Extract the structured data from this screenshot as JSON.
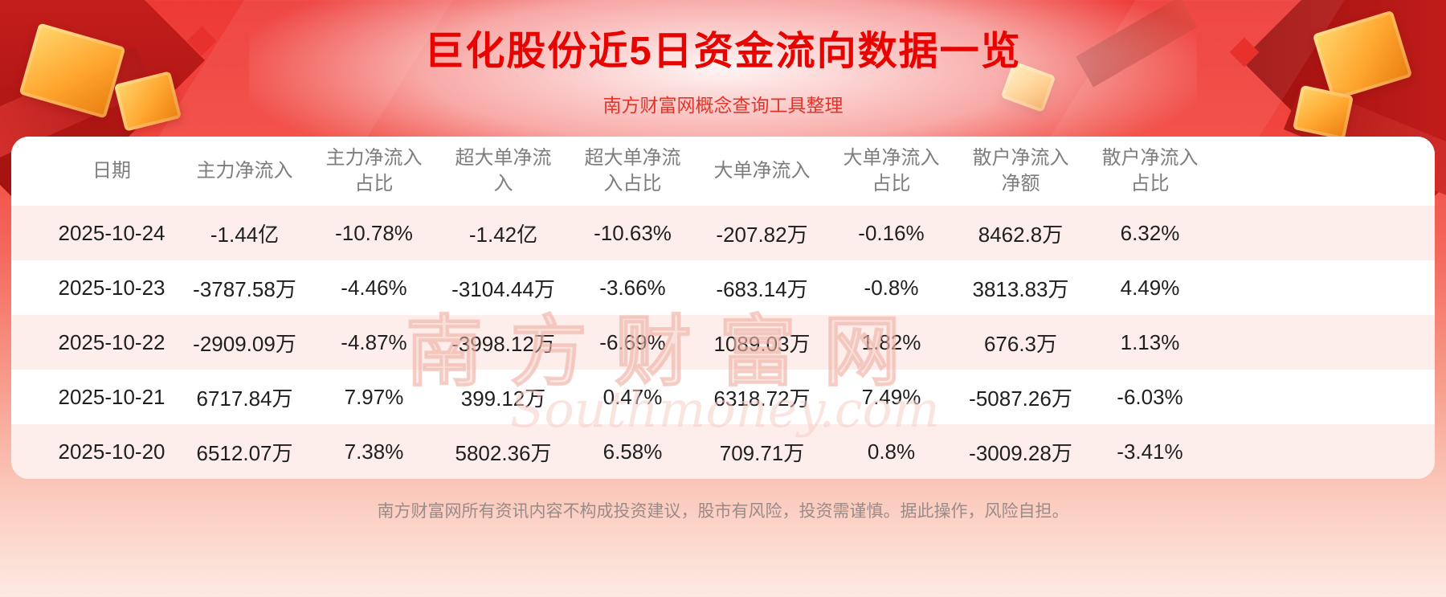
{
  "page": {
    "title": "巨化股份近5日资金流向数据一览",
    "subtitle": "南方财富网概念查询工具整理",
    "footer": "南方财富网所有资讯内容不构成投资建议，股市有风险，投资需谨慎。据此操作，风险自担。",
    "watermark_cn": "南方财富网",
    "watermark_en": "Southmoney.com"
  },
  "colors": {
    "title_red": "#e60300",
    "banner_red": "#ee3a36",
    "stripe_pink": "#fdeeec",
    "header_gray": "#7d7d7d",
    "gold": "#ffa62f"
  },
  "chart_data": {
    "type": "table",
    "title": "巨化股份近5日资金流向数据一览",
    "columns": [
      "日期",
      "主力净流入",
      "主力净流入占比",
      "超大单净流入",
      "超大单净流入占比",
      "大单净流入",
      "大单净流入占比",
      "散户净流入净额",
      "散户净流入占比"
    ],
    "rows": [
      [
        "2025-10-24",
        "-1.44亿",
        "-10.78%",
        "-1.42亿",
        "-10.63%",
        "-207.82万",
        "-0.16%",
        "8462.8万",
        "6.32%"
      ],
      [
        "2025-10-23",
        "-3787.58万",
        "-4.46%",
        "-3104.44万",
        "-3.66%",
        "-683.14万",
        "-0.8%",
        "3813.83万",
        "4.49%"
      ],
      [
        "2025-10-22",
        "-2909.09万",
        "-4.87%",
        "-3998.12万",
        "-6.69%",
        "1089.03万",
        "1.82%",
        "676.3万",
        "1.13%"
      ],
      [
        "2025-10-21",
        "6717.84万",
        "7.97%",
        "399.12万",
        "0.47%",
        "6318.72万",
        "7.49%",
        "-5087.26万",
        "-6.03%"
      ],
      [
        "2025-10-20",
        "6512.07万",
        "7.38%",
        "5802.36万",
        "6.58%",
        "709.71万",
        "0.8%",
        "-3009.28万",
        "-3.41%"
      ]
    ]
  }
}
